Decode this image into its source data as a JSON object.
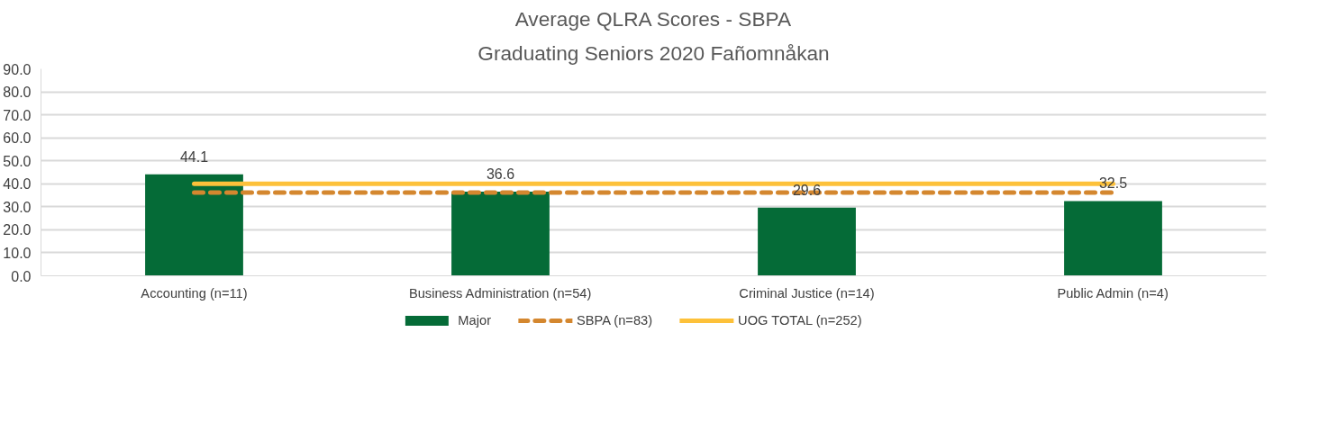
{
  "chart_data": {
    "type": "bar",
    "title": "Average QLRA Scores - SBPA",
    "subtitle": "Graduating Seniors 2020 Fañomnåkan",
    "categories": [
      "Accounting (n=11)",
      "Business Administration (n=54)",
      "Criminal Justice (n=14)",
      "Public Admin (n=4)"
    ],
    "series": [
      {
        "name": "Major",
        "color": "#056b37",
        "values": [
          44.1,
          36.6,
          29.6,
          32.5
        ],
        "value_labels": [
          "44.1",
          "36.6",
          "29.6",
          "32.5"
        ]
      },
      {
        "name": "SBPA (n=83)",
        "type": "line",
        "line_style": "dashed",
        "color": "#d4872f",
        "values": [
          36.2,
          36.2,
          36.2,
          36.2
        ]
      },
      {
        "name": "UOG TOTAL (n=252)",
        "type": "line",
        "line_style": "solid",
        "color": "#fdc13a",
        "values": [
          40.0,
          40.0,
          40.0,
          40.0
        ]
      }
    ],
    "ylim": [
      0,
      90
    ],
    "yticks": [
      {
        "value": 0,
        "label": "0.0"
      },
      {
        "value": 10,
        "label": "10.0"
      },
      {
        "value": 20,
        "label": "20.0"
      },
      {
        "value": 30,
        "label": "30.0"
      },
      {
        "value": 40,
        "label": "40.0"
      },
      {
        "value": 50,
        "label": "50.0"
      },
      {
        "value": 60,
        "label": "60.0"
      },
      {
        "value": 70,
        "label": "70.0"
      },
      {
        "value": 80,
        "label": "80.0"
      },
      {
        "value": 90,
        "label": "90.0"
      }
    ],
    "grid": "y",
    "legend": "bottom"
  }
}
